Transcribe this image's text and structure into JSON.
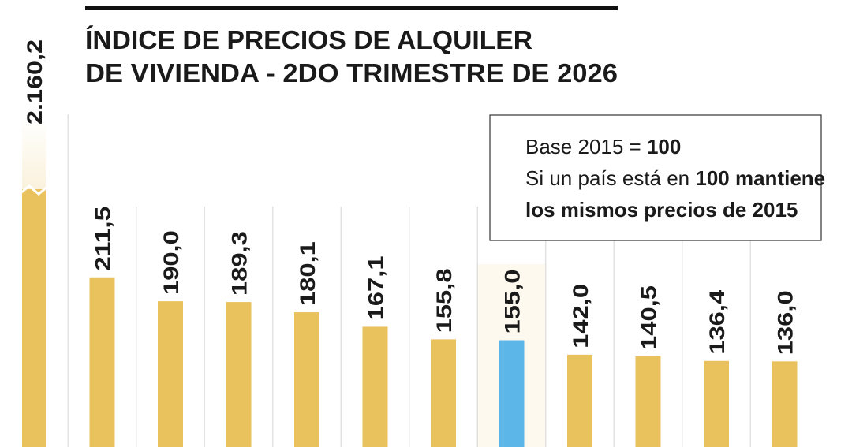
{
  "chart_data": {
    "type": "bar",
    "title": [
      "ÍNDICE DE PRECIOS DE ALQUILER",
      "DE VIVIENDA - 2DO TRIMESTRE DE 2026"
    ],
    "values": [
      2160.2,
      211.5,
      190.0,
      189.3,
      180.1,
      167.1,
      155.8,
      155.0,
      142.0,
      140.5,
      136.4,
      136.0
    ],
    "value_labels": [
      "2.160,2",
      "211,5",
      "190,0",
      "189,3",
      "180,1",
      "167,1",
      "155,8",
      "155,0",
      "142,0",
      "140,5",
      "136,4",
      "136,0"
    ],
    "color": "#e9c15d",
    "colors": [
      "#e9c15d",
      "#e9c15d",
      "#e9c15d",
      "#e9c15d",
      "#e9c15d",
      "#e9c15d",
      "#e9c15d",
      "#5db6e8",
      "#e9c15d",
      "#e9c15d",
      "#e9c15d",
      "#e9c15d"
    ],
    "ylim": [
      59,
      358
    ],
    "axis_break": true,
    "note": [
      [
        {
          "text": "Base 2015 = ",
          "bold": false
        },
        {
          "text": "100",
          "bold": true
        }
      ],
      [
        {
          "text": "Si un país está en ",
          "bold": false
        },
        {
          "text": "100 mantiene",
          "bold": true
        }
      ],
      [
        {
          "text": "los mismos precios de 2015",
          "bold": true
        }
      ]
    ]
  }
}
